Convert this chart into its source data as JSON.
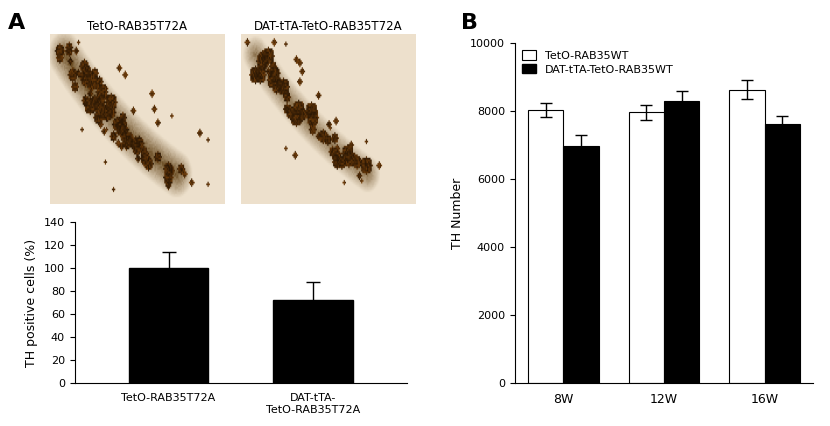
{
  "panel_A_label": "A",
  "panel_B_label": "B",
  "img_label1": "TetO-RAB35T72A",
  "img_label2": "DAT-tTA-TetO-RAB35T72A",
  "bar_categories": [
    "TetO-RAB35T72A",
    "DAT-tTA-\nTetO-RAB35T72A"
  ],
  "bar_values": [
    100,
    72
  ],
  "bar_errors": [
    14,
    16
  ],
  "bar_color": "#000000",
  "bar_ylabel": "TH positive cells (%)",
  "bar_ylim": [
    0,
    140
  ],
  "bar_yticks": [
    0,
    20,
    40,
    60,
    80,
    100,
    120,
    140
  ],
  "grouped_categories": [
    "8W",
    "12W",
    "16W"
  ],
  "grouped_white_values": [
    8020,
    7950,
    8620
  ],
  "grouped_black_values": [
    6980,
    8300,
    7620
  ],
  "grouped_white_errors": [
    200,
    230,
    270
  ],
  "grouped_black_errors": [
    300,
    270,
    220
  ],
  "grouped_ylabel": "TH Number",
  "grouped_ylim": [
    0,
    10000
  ],
  "grouped_yticks": [
    0,
    2000,
    4000,
    6000,
    8000,
    10000
  ],
  "legend_white": "TetO-RAB35WT",
  "legend_black": "DAT-tTA-TetO-RAB35WT",
  "white_color": "#ffffff",
  "black_color": "#000000",
  "bar_width": 0.35,
  "font_size": 9,
  "label_font_size": 16
}
